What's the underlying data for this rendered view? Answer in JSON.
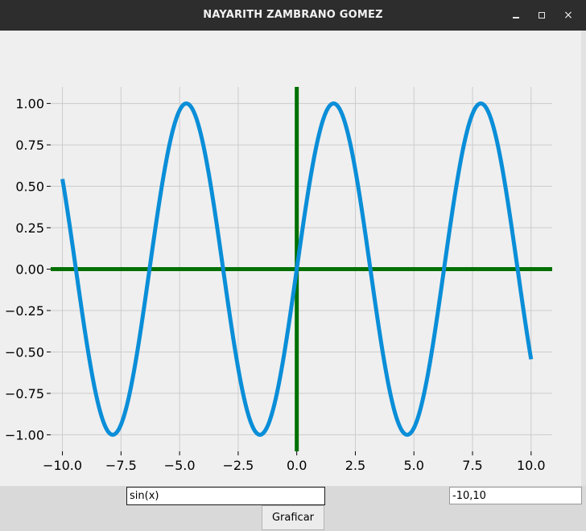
{
  "window": {
    "title": "NAYARITH ZAMBRANO GOMEZ",
    "controls": {
      "minimize": "minimize",
      "maximize": "maximize",
      "close": "×"
    }
  },
  "controls": {
    "function_value": "sin(x)",
    "range_value": "-10,10",
    "plot_button_label": "Graficar"
  },
  "chart_data": {
    "type": "line",
    "title": "",
    "xlabel": "",
    "ylabel": "",
    "xlim": [
      -10.5,
      10.9
    ],
    "ylim": [
      -1.1,
      1.1
    ],
    "grid": true,
    "xticks": [
      -10,
      -7.5,
      -5,
      -2.5,
      0,
      2.5,
      5,
      7.5,
      10
    ],
    "xtick_labels": [
      "−10.0",
      "−7.5",
      "−5.0",
      "−2.5",
      "0.0",
      "2.5",
      "5.0",
      "7.5",
      "10.0"
    ],
    "yticks": [
      1,
      0.75,
      0.5,
      0.25,
      0,
      -0.25,
      -0.5,
      -0.75,
      -1
    ],
    "ytick_labels": [
      "1.00",
      "0.75",
      "0.50",
      "0.25",
      "0.00",
      "−0.25",
      "−0.50",
      "−0.75",
      "−1.00"
    ],
    "series": [
      {
        "function": "sin(x)",
        "x_range": [
          -10,
          10
        ],
        "color": "#0a8ed8"
      }
    ],
    "axis_lines": {
      "color": "#007000"
    },
    "grid_color": "#cccccc"
  }
}
